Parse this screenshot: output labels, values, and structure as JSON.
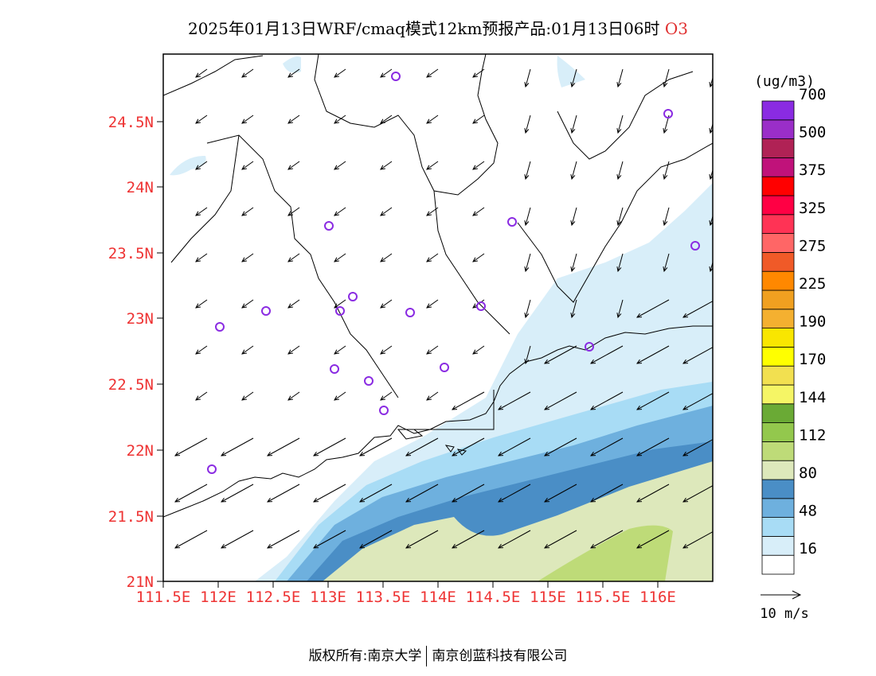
{
  "title": {
    "text": "2025年01月13日WRF/cmaq模式12km预报产品:01月13日06时",
    "species": "O3"
  },
  "map": {
    "lat_labels": [
      "21N",
      "21.5N",
      "22N",
      "22.5N",
      "23N",
      "23.5N",
      "24N",
      "24.5N"
    ],
    "lon_labels": [
      "111.5E",
      "112E",
      "112.5E",
      "113E",
      "113.5E",
      "114E",
      "114.5E",
      "115E",
      "115.5E",
      "116E"
    ],
    "label_color": "#ee3333",
    "station_color": "#8a2be2"
  },
  "legend": {
    "unit": "(ug/m3)",
    "colors": [
      "#ffffff",
      "#d8eef9",
      "#a8dcf5",
      "#6eb0de",
      "#4a8ec6",
      "#dde8bb",
      "#bedb78",
      "#93c84d",
      "#6aaa35",
      "#f5f565",
      "#f2e050",
      "#ffff00",
      "#f9e600",
      "#f4b030",
      "#f0a020",
      "#ff8800",
      "#f05a28",
      "#ff6666",
      "#ff3355",
      "#ff0044",
      "#ff0000",
      "#c0127a",
      "#b02255",
      "#9a2ec8",
      "#8a2be2"
    ],
    "labels": [
      "16",
      "48",
      "80",
      "112",
      "144",
      "170",
      "190",
      "225",
      "275",
      "325",
      "375",
      "500",
      "700"
    ]
  },
  "vector_legend": {
    "label": "10 m/s"
  },
  "footer": {
    "left": "版权所有:南京大学",
    "right": "南京创蓝科技有限公司"
  }
}
